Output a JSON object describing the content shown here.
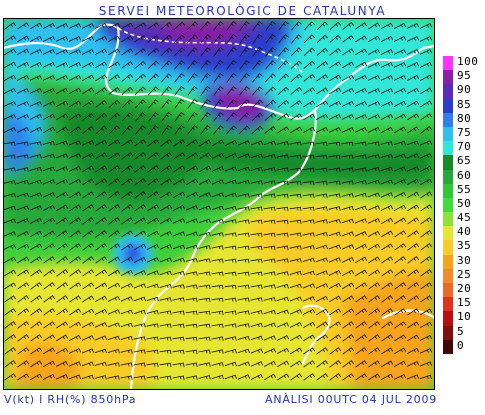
{
  "header": {
    "title": "SERVEI METEOROLÒGIC DE CATALUNYA"
  },
  "footer": {
    "left": "V(kt) I RH(%) 850hPa",
    "right": "ANÀLISI 00UTC 04 JUL 2009"
  },
  "legend": {
    "items": [
      {
        "label": "100",
        "color": "#ff33ff"
      },
      {
        "label": "95",
        "color": "#8a1fa8"
      },
      {
        "label": "90",
        "color": "#5a2ab8"
      },
      {
        "label": "85",
        "color": "#2c3ccc"
      },
      {
        "label": "80",
        "color": "#2f80ee"
      },
      {
        "label": "75",
        "color": "#2fc0f0"
      },
      {
        "label": "70",
        "color": "#30e6d8"
      },
      {
        "label": "65",
        "color": "#198a2a"
      },
      {
        "label": "60",
        "color": "#28a83a"
      },
      {
        "label": "55",
        "color": "#2ec83a"
      },
      {
        "label": "50",
        "color": "#40dc3a"
      },
      {
        "label": "45",
        "color": "#8ee03a"
      },
      {
        "label": "40",
        "color": "#e6e632"
      },
      {
        "label": "35",
        "color": "#f8cc28"
      },
      {
        "label": "30",
        "color": "#f6a41e"
      },
      {
        "label": "25",
        "color": "#f08a2a"
      },
      {
        "label": "20",
        "color": "#ea6a28"
      },
      {
        "label": "15",
        "color": "#e0301e"
      },
      {
        "label": "10",
        "color": "#b81010"
      },
      {
        "label": "5",
        "color": "#801010"
      },
      {
        "label": "0",
        "color": "#400808"
      }
    ]
  }
}
